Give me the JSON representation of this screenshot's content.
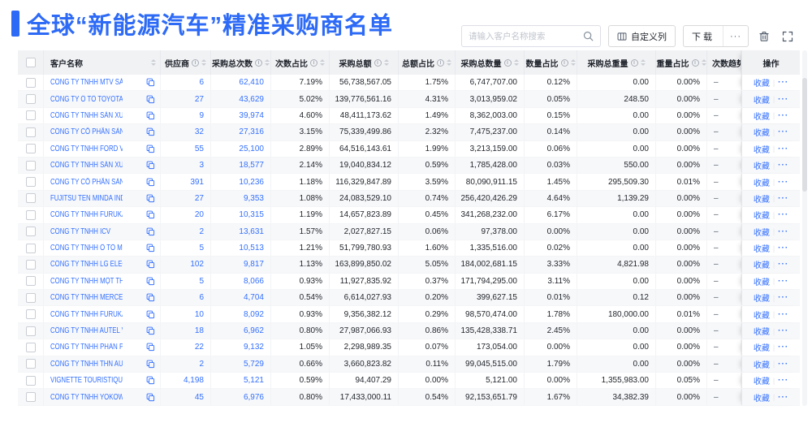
{
  "page": {
    "title": "全球“新能源汽车”精准采购商名单"
  },
  "toolbar": {
    "search_placeholder": "请输入客户名称搜索",
    "customize_columns_label": "自定义列",
    "download_label": "下载",
    "more_label": "···"
  },
  "colors": {
    "accent": "#2D6AF6",
    "link": "#3370FF",
    "header_bg": "#F1F2F4",
    "stripe_bg": "#F7F8FA"
  },
  "table": {
    "columns": [
      {
        "key": "name",
        "label": "客户名称",
        "info": false,
        "sort": true
      },
      {
        "key": "supplier",
        "label": "供应商",
        "info": true,
        "sort": true
      },
      {
        "key": "total_count",
        "label": "采购总次数",
        "info": true,
        "sort": true
      },
      {
        "key": "count_pct",
        "label": "次数占比",
        "info": true,
        "sort": true
      },
      {
        "key": "total_amount",
        "label": "采购总额",
        "info": true,
        "sort": true
      },
      {
        "key": "amount_pct",
        "label": "总额占比",
        "info": true,
        "sort": true
      },
      {
        "key": "total_qty",
        "label": "采购总数量",
        "info": true,
        "sort": true
      },
      {
        "key": "qty_pct",
        "label": "数量占比",
        "info": true,
        "sort": true
      },
      {
        "key": "total_weight",
        "label": "采购总重量",
        "info": true,
        "sort": true
      },
      {
        "key": "weight_pct",
        "label": "重量占比",
        "info": true,
        "sort": true
      },
      {
        "key": "trend",
        "label": "次数趋势",
        "info": false,
        "sort": false
      },
      {
        "key": "ops",
        "label": "操作",
        "info": false,
        "sort": false
      }
    ],
    "ops_labels": {
      "favorite": "收藏",
      "more": "···"
    },
    "rows": [
      {
        "name": "CÔNG TY TNHH MTV SẢN XUẤ...",
        "supplier": "6",
        "total_count": "62,410",
        "count_pct": "7.19%",
        "total_amount": "56,738,567.05",
        "amount_pct": "1.75%",
        "total_qty": "6,747,707.00",
        "qty_pct": "0.12%",
        "total_weight": "0.00",
        "weight_pct": "0.00%",
        "trend": "–"
      },
      {
        "name": "CÔNG TY Ô TÔ TOYOTA VIỆT ...",
        "supplier": "27",
        "total_count": "43,629",
        "count_pct": "5.02%",
        "total_amount": "139,776,561.16",
        "amount_pct": "4.31%",
        "total_qty": "3,013,959.02",
        "qty_pct": "0.05%",
        "total_weight": "248.50",
        "weight_pct": "0.00%",
        "trend": "–"
      },
      {
        "name": "CÔNG TY TNHH SẢN XUẤT VÀ ...",
        "supplier": "9",
        "total_count": "39,974",
        "count_pct": "4.60%",
        "total_amount": "48,411,173.62",
        "amount_pct": "1.49%",
        "total_qty": "8,362,003.00",
        "qty_pct": "0.15%",
        "total_weight": "0.00",
        "weight_pct": "0.00%",
        "trend": "–"
      },
      {
        "name": "CÔNG TY CỔ PHẦN SẢN XUẤT...",
        "supplier": "32",
        "total_count": "27,316",
        "count_pct": "3.15%",
        "total_amount": "75,339,499.86",
        "amount_pct": "2.32%",
        "total_qty": "7,475,237.00",
        "qty_pct": "0.14%",
        "total_weight": "0.00",
        "weight_pct": "0.00%",
        "trend": "–"
      },
      {
        "name": "CÔNG TY TNHH FORD VIỆT NAM",
        "supplier": "55",
        "total_count": "25,100",
        "count_pct": "2.89%",
        "total_amount": "64,516,143.61",
        "amount_pct": "1.99%",
        "total_qty": "3,213,159.00",
        "qty_pct": "0.06%",
        "total_weight": "0.00",
        "weight_pct": "0.00%",
        "trend": "–"
      },
      {
        "name": "CÔNG TY TNHH SẢN XUẤT VÀ ...",
        "supplier": "3",
        "total_count": "18,577",
        "count_pct": "2.14%",
        "total_amount": "19,040,834.12",
        "amount_pct": "0.59%",
        "total_qty": "1,785,428.00",
        "qty_pct": "0.03%",
        "total_weight": "550.00",
        "weight_pct": "0.00%",
        "trend": "–"
      },
      {
        "name": "CÔNG TY CỔ PHẦN SẢN XUẤT...",
        "supplier": "391",
        "total_count": "10,236",
        "count_pct": "1.18%",
        "total_amount": "116,329,847.89",
        "amount_pct": "3.59%",
        "total_qty": "80,090,911.15",
        "qty_pct": "1.45%",
        "total_weight": "295,509.30",
        "weight_pct": "0.01%",
        "trend": "–"
      },
      {
        "name": "FUJITSU TEN MINDA INDIA PVT...",
        "supplier": "27",
        "total_count": "9,353",
        "count_pct": "1.08%",
        "total_amount": "24,083,529.10",
        "amount_pct": "0.74%",
        "total_qty": "256,420,426.29",
        "qty_pct": "4.64%",
        "total_weight": "1,139.29",
        "weight_pct": "0.00%",
        "trend": "–"
      },
      {
        "name": "CÔNG TY TNHH FURUKAWA A...",
        "supplier": "20",
        "total_count": "10,315",
        "count_pct": "1.19%",
        "total_amount": "14,657,823.89",
        "amount_pct": "0.45%",
        "total_qty": "341,268,232.00",
        "qty_pct": "6.17%",
        "total_weight": "0.00",
        "weight_pct": "0.00%",
        "trend": "–"
      },
      {
        "name": "CÔNG TY TNHH ICV",
        "supplier": "2",
        "total_count": "13,631",
        "count_pct": "1.57%",
        "total_amount": "2,027,827.15",
        "amount_pct": "0.06%",
        "total_qty": "97,378.00",
        "qty_pct": "0.00%",
        "total_weight": "0.00",
        "weight_pct": "0.00%",
        "trend": "–"
      },
      {
        "name": "CÔNG TY TNHH Ô TÔ MITSUBI...",
        "supplier": "5",
        "total_count": "10,513",
        "count_pct": "1.21%",
        "total_amount": "51,799,780.93",
        "amount_pct": "1.60%",
        "total_qty": "1,335,516.00",
        "qty_pct": "0.02%",
        "total_weight": "0.00",
        "weight_pct": "0.00%",
        "trend": "–"
      },
      {
        "name": "CÔNG TY TNHH LG ELECTRON...",
        "supplier": "102",
        "total_count": "9,817",
        "count_pct": "1.13%",
        "total_amount": "163,899,850.02",
        "amount_pct": "5.05%",
        "total_qty": "184,002,681.15",
        "qty_pct": "3.33%",
        "total_weight": "4,821.98",
        "weight_pct": "0.00%",
        "trend": "–"
      },
      {
        "name": "CÔNG TY TNHH MỘT THÀNH V...",
        "supplier": "5",
        "total_count": "8,066",
        "count_pct": "0.93%",
        "total_amount": "11,927,835.92",
        "amount_pct": "0.37%",
        "total_qty": "171,794,295.00",
        "qty_pct": "3.11%",
        "total_weight": "0.00",
        "weight_pct": "0.00%",
        "trend": "–"
      },
      {
        "name": "CÔNG TY TNHH MERCEDES–B...",
        "supplier": "6",
        "total_count": "4,704",
        "count_pct": "0.54%",
        "total_amount": "6,614,027.93",
        "amount_pct": "0.20%",
        "total_qty": "399,627.15",
        "qty_pct": "0.01%",
        "total_weight": "0.12",
        "weight_pct": "0.00%",
        "trend": "–"
      },
      {
        "name": "CÔNG TY TNHH FURUKAWA A...",
        "supplier": "10",
        "total_count": "8,092",
        "count_pct": "0.93%",
        "total_amount": "9,356,382.12",
        "amount_pct": "0.29%",
        "total_qty": "98,570,474.00",
        "qty_pct": "1.78%",
        "total_weight": "180,000.00",
        "weight_pct": "0.01%",
        "trend": "–"
      },
      {
        "name": "CÔNG TY TNHH AUTEL VIỆT N...",
        "supplier": "18",
        "total_count": "6,962",
        "count_pct": "0.80%",
        "total_amount": "27,987,066.93",
        "amount_pct": "0.86%",
        "total_qty": "135,428,338.71",
        "qty_pct": "2.45%",
        "total_weight": "0.00",
        "weight_pct": "0.00%",
        "trend": "–"
      },
      {
        "name": "CÔNG TY TNHH PHÂN PHỐI T...",
        "supplier": "22",
        "total_count": "9,132",
        "count_pct": "1.05%",
        "total_amount": "2,298,989.35",
        "amount_pct": "0.07%",
        "total_qty": "173,054.00",
        "qty_pct": "0.00%",
        "total_weight": "0.00",
        "weight_pct": "0.00%",
        "trend": "–"
      },
      {
        "name": "CÔNG TY TNHH THN AUTOPAR...",
        "supplier": "2",
        "total_count": "5,729",
        "count_pct": "0.66%",
        "total_amount": "3,660,823.82",
        "amount_pct": "0.11%",
        "total_qty": "99,045,515.00",
        "qty_pct": "1.79%",
        "total_weight": "0.00",
        "weight_pct": "0.00%",
        "trend": "–"
      },
      {
        "name": "VIGNETTE TOURISTIQUE G UNI...",
        "supplier": "4,198",
        "total_count": "5,121",
        "count_pct": "0.59%",
        "total_amount": "94,407.29",
        "amount_pct": "0.00%",
        "total_qty": "5,121.00",
        "qty_pct": "0.00%",
        "total_weight": "1,355,983.00",
        "weight_pct": "0.05%",
        "trend": "–"
      },
      {
        "name": "CÔNG TY TNHH YOKOWO VIỆT...",
        "supplier": "45",
        "total_count": "6,976",
        "count_pct": "0.80%",
        "total_amount": "17,433,000.11",
        "amount_pct": "0.54%",
        "total_qty": "92,153,651.79",
        "qty_pct": "1.67%",
        "total_weight": "34,382.39",
        "weight_pct": "0.00%",
        "trend": "–"
      }
    ]
  }
}
